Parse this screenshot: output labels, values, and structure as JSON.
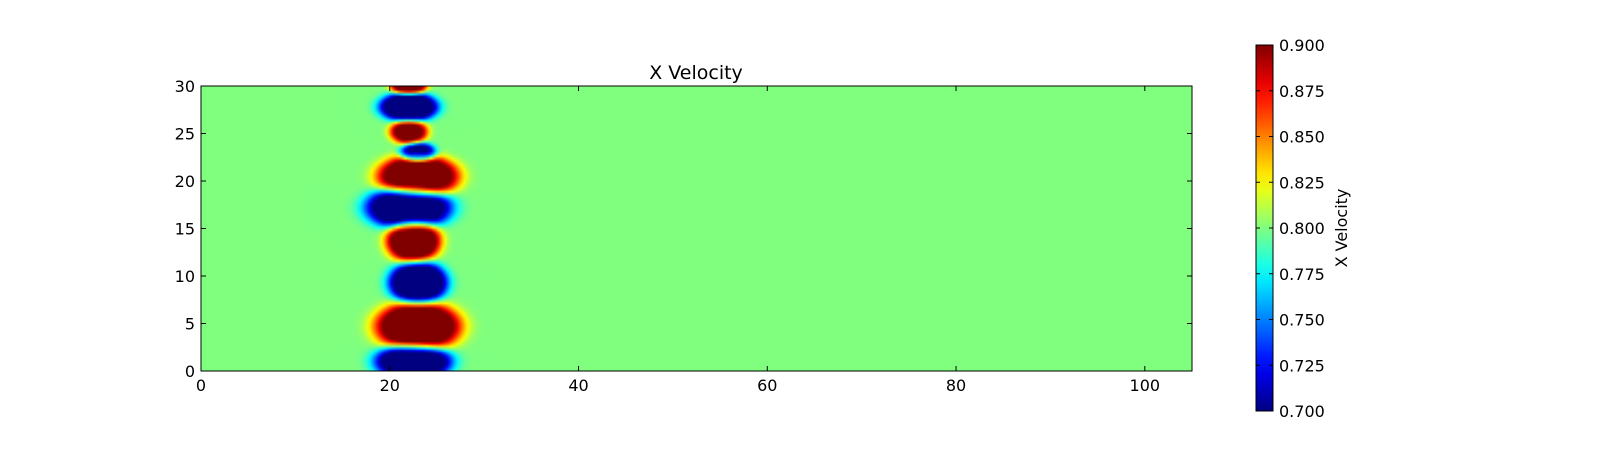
{
  "chart_data": {
    "type": "heatmap",
    "title": "X Velocity",
    "xlabel": "",
    "ylabel": "",
    "xlim": [
      0,
      105
    ],
    "ylim": [
      0,
      30
    ],
    "x_ticks": [
      "0",
      "20",
      "40",
      "60",
      "80",
      "100"
    ],
    "y_ticks": [
      "0",
      "5",
      "10",
      "15",
      "20",
      "25",
      "30"
    ],
    "colormap": "jet",
    "background_value": 0.8,
    "colorbar": {
      "label": "X Velocity",
      "range": [
        0.7,
        0.9
      ],
      "ticks": [
        "0.700",
        "0.725",
        "0.750",
        "0.775",
        "0.800",
        "0.825",
        "0.850",
        "0.875",
        "0.900"
      ]
    },
    "blobs": [
      {
        "x": 22.5,
        "y": 1.0,
        "value": 0.7,
        "rx": 3.4,
        "ry": 1.6
      },
      {
        "x": 23.0,
        "y": 4.7,
        "value": 0.9,
        "rx": 3.8,
        "ry": 2.2
      },
      {
        "x": 23.0,
        "y": 9.3,
        "value": 0.7,
        "rx": 2.6,
        "ry": 1.9
      },
      {
        "x": 22.5,
        "y": 13.7,
        "value": 0.9,
        "rx": 2.4,
        "ry": 1.9
      },
      {
        "x": 22.0,
        "y": 17.2,
        "value": 0.7,
        "rx": 3.8,
        "ry": 1.9
      },
      {
        "x": 23.0,
        "y": 20.5,
        "value": 0.9,
        "rx": 3.6,
        "ry": 1.9
      },
      {
        "x": 23.0,
        "y": 23.0,
        "value": 0.72,
        "rx": 1.6,
        "ry": 0.9
      },
      {
        "x": 22.0,
        "y": 25.2,
        "value": 0.88,
        "rx": 1.7,
        "ry": 1.1
      },
      {
        "x": 22.0,
        "y": 27.8,
        "value": 0.7,
        "rx": 2.6,
        "ry": 1.3
      },
      {
        "x": 22.0,
        "y": 30.0,
        "value": 0.89,
        "rx": 1.6,
        "ry": 0.8
      }
    ]
  }
}
